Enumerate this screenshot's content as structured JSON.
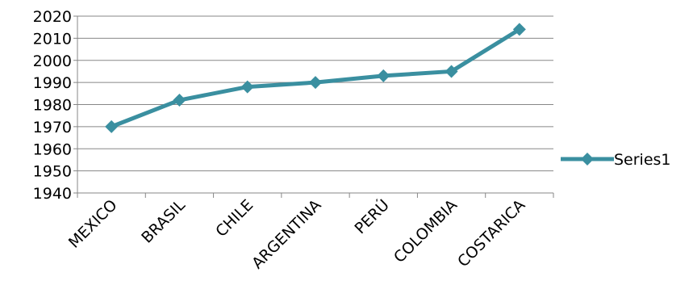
{
  "chart_data": {
    "type": "line",
    "title": "",
    "xlabel": "",
    "ylabel": "",
    "categories": [
      "MEXICO",
      "BRASIL",
      "CHILE",
      "ARGENTINA",
      "PERÚ",
      "COLOMBIA",
      "COSTARICA"
    ],
    "series": [
      {
        "name": "Series1",
        "values": [
          1970,
          1982,
          1988,
          1990,
          1993,
          1995,
          2014
        ],
        "color": "#3a8fa0"
      }
    ],
    "ylim": [
      1940,
      2020
    ],
    "yticks": [
      1940,
      1950,
      1960,
      1970,
      1980,
      1990,
      2000,
      2010,
      2020
    ],
    "grid": true,
    "legend": "right"
  }
}
